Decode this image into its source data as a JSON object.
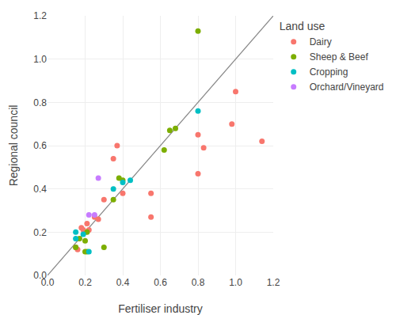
{
  "chart_data": {
    "type": "scatter",
    "xlabel": "Fertiliser industry",
    "ylabel": "Regional council",
    "legend_title": "Land use",
    "xlim": [
      0.0,
      1.2
    ],
    "ylim": [
      0.0,
      1.2
    ],
    "xticks": [
      {
        "value": 0.0,
        "label": "0.0"
      },
      0.2,
      0.4,
      0.6,
      0.8,
      {
        "value": 1.0,
        "label": "1.0"
      },
      1.2
    ],
    "yticks": [
      {
        "value": 0.0,
        "label": "0.0"
      },
      0.2,
      0.4,
      0.6,
      0.8,
      {
        "value": 1.0,
        "label": "1.0"
      },
      1.2
    ],
    "grid": true,
    "legend": "right",
    "series": [
      {
        "type": "line",
        "color": "#888888",
        "x": [
          0,
          1.2
        ],
        "values": [
          0,
          1.2
        ]
      },
      {
        "name": "Dairy",
        "color": "#F8766D",
        "x": [
          0.15,
          0.16,
          0.18,
          0.19,
          0.2,
          0.21,
          0.22,
          0.25,
          0.27,
          0.3,
          0.35,
          0.37,
          0.4,
          0.55,
          0.55,
          0.8,
          0.8,
          0.83,
          0.98,
          1.0,
          1.14
        ],
        "values": [
          0.13,
          0.12,
          0.22,
          0.21,
          0.2,
          0.24,
          0.21,
          0.27,
          0.26,
          0.35,
          0.54,
          0.6,
          0.38,
          0.38,
          0.27,
          0.47,
          0.65,
          0.59,
          0.7,
          0.85,
          0.62
        ]
      },
      {
        "name": "Sheep & Beef",
        "color": "#7CAE00",
        "x": [
          0.15,
          0.17,
          0.2,
          0.2,
          0.21,
          0.21,
          0.3,
          0.35,
          0.38,
          0.4,
          0.62,
          0.65,
          0.68,
          0.8
        ],
        "values": [
          0.13,
          0.17,
          0.11,
          0.16,
          0.2,
          0.11,
          0.13,
          0.35,
          0.45,
          0.44,
          0.58,
          0.67,
          0.68,
          1.13
        ]
      },
      {
        "name": "Cropping",
        "color": "#00BFC4",
        "x": [
          0.15,
          0.15,
          0.19,
          0.22,
          0.35,
          0.4,
          0.44,
          0.8
        ],
        "values": [
          0.17,
          0.2,
          0.19,
          0.11,
          0.4,
          0.43,
          0.44,
          0.76
        ]
      },
      {
        "name": "Orchard/Vineyard",
        "color": "#C77CFF",
        "x": [
          0.22,
          0.25,
          0.27
        ],
        "values": [
          0.28,
          0.28,
          0.45
        ]
      }
    ]
  }
}
